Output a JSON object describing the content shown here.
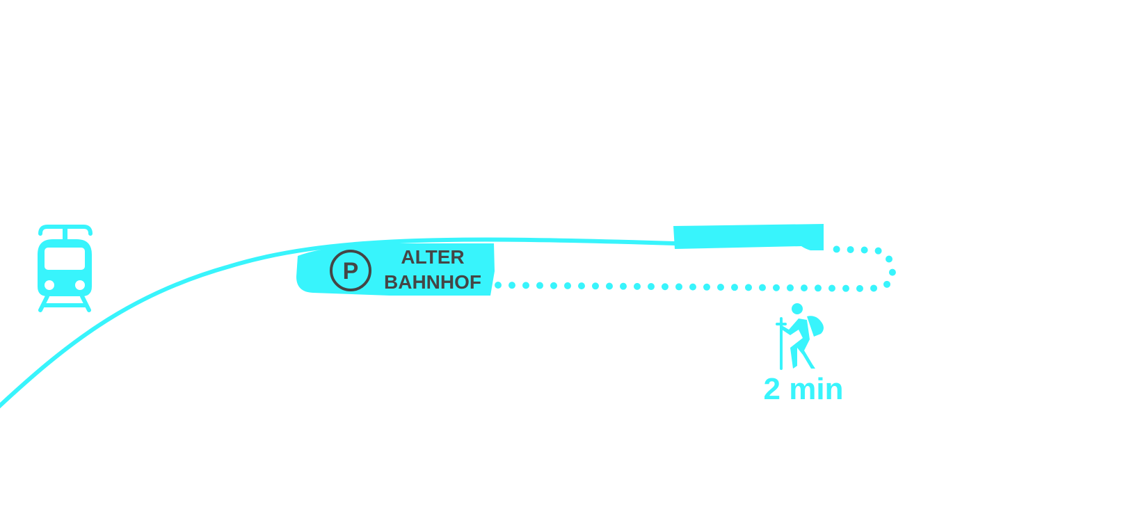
{
  "parking": {
    "symbol": "P",
    "name_line1": "ALTER",
    "name_line2": "BAHNHOF"
  },
  "walk": {
    "duration": "2 min"
  },
  "icons": {
    "tram": "tram-icon",
    "parking": "parking-icon",
    "walker": "hiker-icon"
  },
  "colors": {
    "accent": "#38F4FC",
    "text": "#454545",
    "background": "#FFFFFF"
  }
}
